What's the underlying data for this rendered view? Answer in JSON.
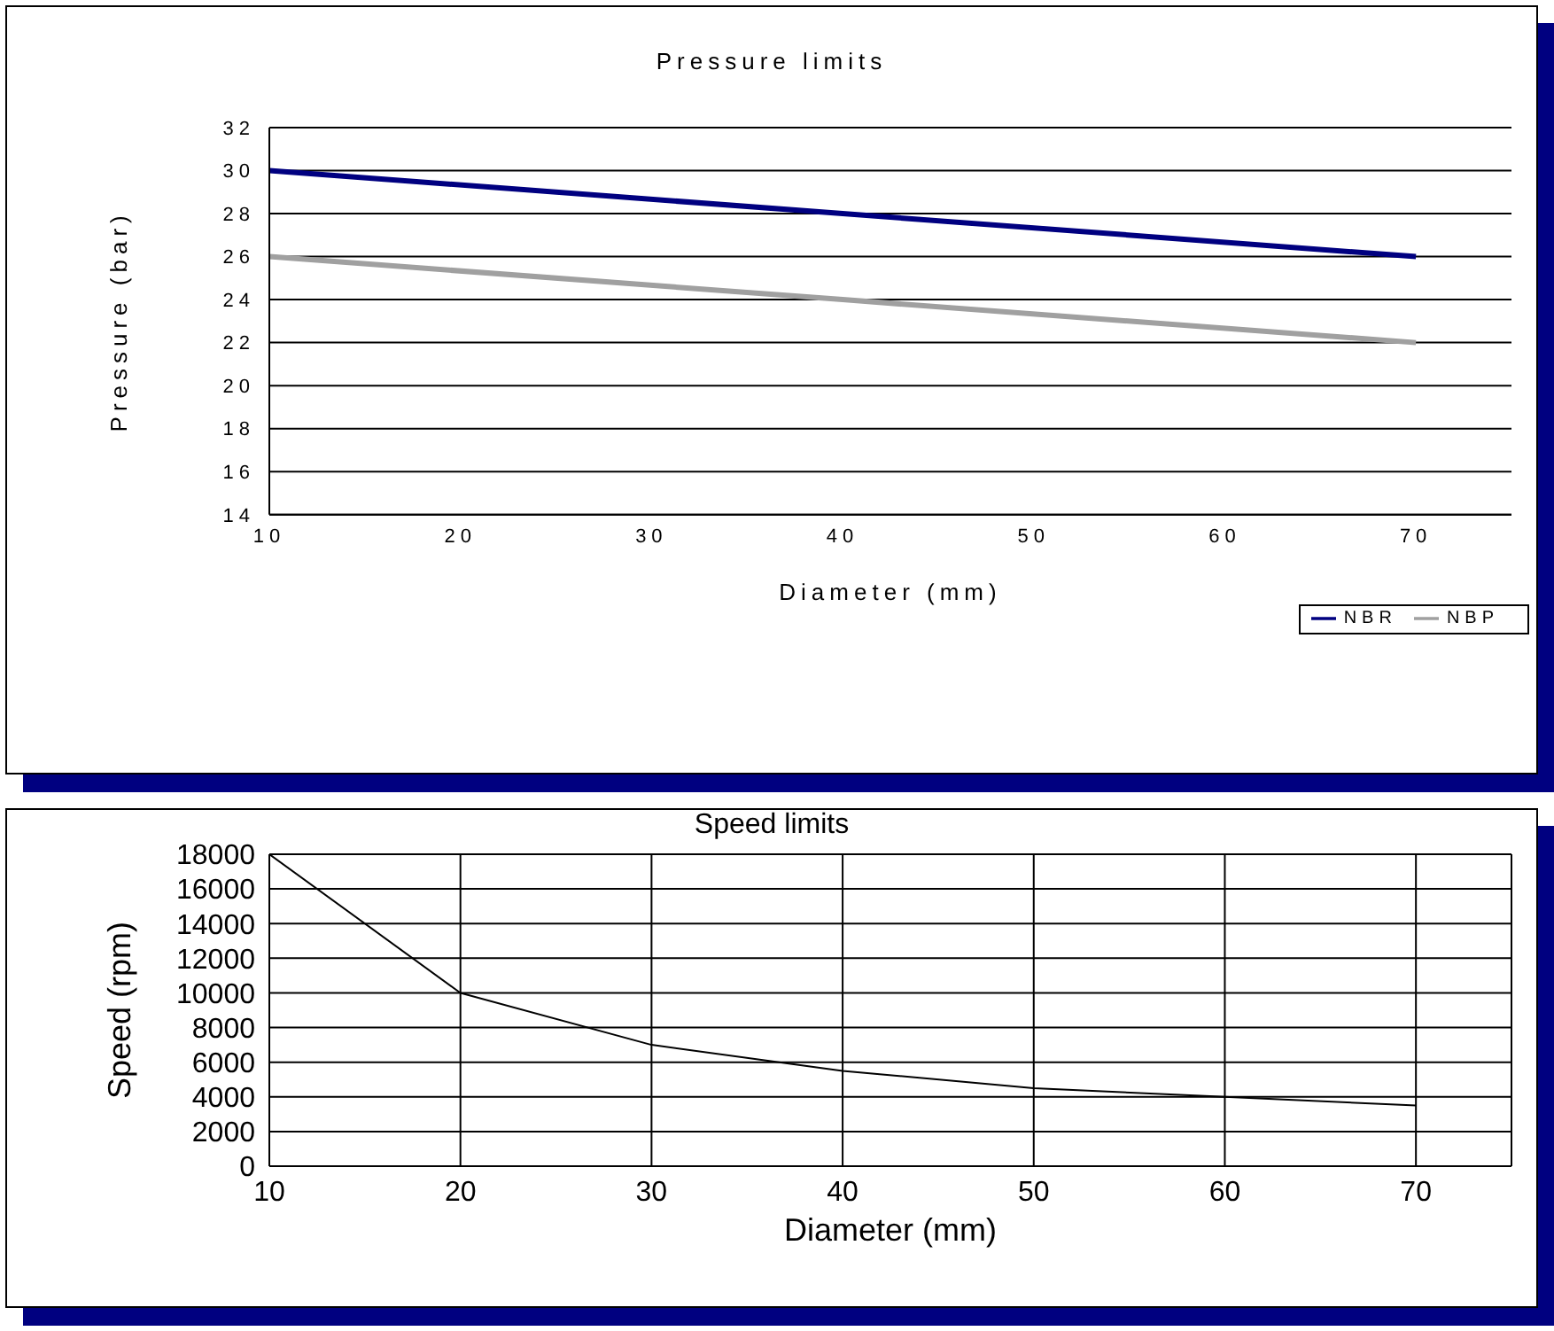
{
  "chart_data": [
    {
      "type": "line",
      "title": "Pressure limits",
      "xlabel": "Diameter (mm)",
      "ylabel": "Pressure  (bar)",
      "x": [
        10,
        40,
        70
      ],
      "series": [
        {
          "name": "NBR",
          "color": "#000080",
          "values": [
            30,
            28,
            26
          ]
        },
        {
          "name": "NBP",
          "color": "#a0a0a0",
          "values": [
            26,
            24,
            22
          ]
        }
      ],
      "xlim": [
        10,
        75
      ],
      "xticks": [
        10,
        20,
        30,
        40,
        50,
        60,
        70
      ],
      "ylim": [
        14,
        32
      ],
      "yticks": [
        14,
        16,
        18,
        20,
        22,
        24,
        26,
        28,
        30,
        32
      ],
      "grid": "y",
      "legend": "bottom right",
      "marker": "none"
    },
    {
      "type": "line",
      "title": "Speed limits",
      "xlabel": "Diameter  (mm)",
      "ylabel": "Speed (rpm)",
      "x": [
        10,
        20,
        30,
        40,
        50,
        60,
        70
      ],
      "values": [
        18000,
        10000,
        7000,
        5500,
        4500,
        4000,
        3500
      ],
      "color": "#000000",
      "xlim": [
        10,
        75
      ],
      "xticks": [
        10,
        20,
        30,
        40,
        50,
        60,
        70
      ],
      "ylim": [
        0,
        18000
      ],
      "yticks": [
        0,
        2000,
        4000,
        6000,
        8000,
        10000,
        12000,
        14000,
        16000,
        18000
      ],
      "grid": true,
      "legend": false,
      "marker": "none"
    }
  ]
}
